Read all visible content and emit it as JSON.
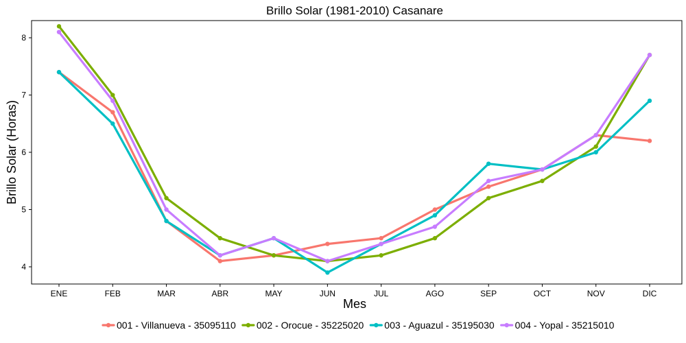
{
  "chart_data": {
    "type": "line",
    "title": "Brillo Solar (1981-2010)  Casanare",
    "xlabel": "Mes",
    "ylabel": "Brillo Solar (Horas)",
    "categories": [
      "ENE",
      "FEB",
      "MAR",
      "ABR",
      "MAY",
      "JUN",
      "JUL",
      "AGO",
      "SEP",
      "OCT",
      "NOV",
      "DIC"
    ],
    "yticks": [
      4,
      5,
      6,
      7,
      8
    ],
    "ylim": [
      3.7,
      8.3
    ],
    "grid": false,
    "legend_position": "bottom",
    "series": [
      {
        "name": "001 - Villanueva - 35095110",
        "color": "#F8766D",
        "values": [
          7.4,
          6.7,
          4.8,
          4.1,
          4.2,
          4.4,
          4.5,
          5.0,
          5.4,
          5.7,
          6.3,
          6.2
        ]
      },
      {
        "name": "002 - Orocue - 35225020",
        "color": "#7CAE00",
        "values": [
          8.2,
          7.0,
          5.2,
          4.5,
          4.2,
          4.1,
          4.2,
          4.5,
          5.2,
          5.5,
          6.1,
          7.7
        ]
      },
      {
        "name": "003 - Aguazul - 35195030",
        "color": "#00BFC4",
        "values": [
          7.4,
          6.5,
          4.8,
          4.2,
          4.5,
          3.9,
          4.4,
          4.9,
          5.8,
          5.7,
          6.0,
          6.9
        ]
      },
      {
        "name": "004 - Yopal - 35215010",
        "color": "#C77CFF",
        "values": [
          8.1,
          6.9,
          5.0,
          4.2,
          4.5,
          4.1,
          4.4,
          4.7,
          5.5,
          5.7,
          6.3,
          7.7
        ]
      }
    ]
  }
}
